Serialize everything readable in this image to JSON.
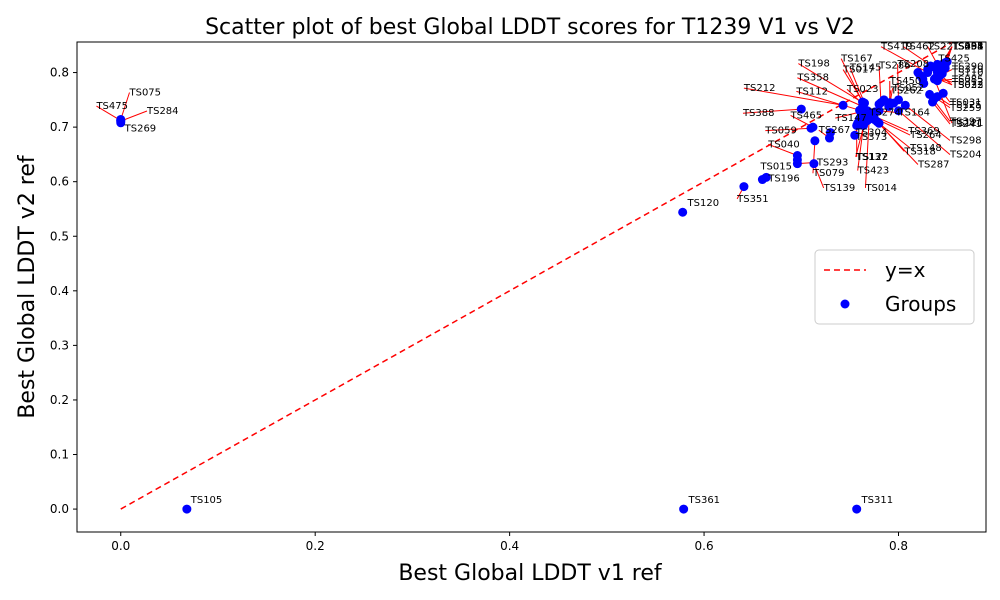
{
  "chart_data": {
    "type": "scatter",
    "title": "Scatter plot of best Global LDDT scores for T1239 V1 vs V2",
    "xlabel": "Best Global LDDT v1 ref",
    "ylabel": "Best Global LDDT v2 ref",
    "xlim": [
      -0.045,
      0.89
    ],
    "ylim": [
      -0.042,
      0.856
    ],
    "xticks": [
      "0.0",
      "0.2",
      "0.4",
      "0.6",
      "0.8"
    ],
    "xtick_values": [
      0.0,
      0.2,
      0.4,
      0.6,
      0.8
    ],
    "yticks": [
      "0.0",
      "0.1",
      "0.2",
      "0.3",
      "0.4",
      "0.5",
      "0.6",
      "0.7",
      "0.8"
    ],
    "ytick_values": [
      0.0,
      0.1,
      0.2,
      0.3,
      0.4,
      0.5,
      0.6,
      0.7,
      0.8
    ],
    "grid": false,
    "legend_position": "center-right",
    "legend": [
      {
        "label": "y=x",
        "style": "dashed-line",
        "color": "#ff0000"
      },
      {
        "label": "Groups",
        "style": "marker",
        "color": "#0000ff"
      }
    ],
    "reference_line": {
      "x": [
        0,
        0.89
      ],
      "y": [
        0,
        0.89
      ],
      "color": "#ff0000"
    },
    "marker_color": "#0000ff",
    "connector_color": "#ff0000",
    "points": [
      {
        "label": "TS075",
        "x": 0.0,
        "y": 0.714,
        "lx": 0.009,
        "ly": 0.758
      },
      {
        "label": "TS475",
        "x": 0.0,
        "y": 0.712,
        "lx": -0.025,
        "ly": 0.733
      },
      {
        "label": "TS284",
        "x": 0.0,
        "y": 0.711,
        "lx": 0.027,
        "ly": 0.724
      },
      {
        "label": "TS269",
        "x": 0.0,
        "y": 0.708,
        "lx": 0.004,
        "ly": 0.692
      },
      {
        "label": "TS105",
        "x": 0.068,
        "y": 0.0,
        "lx": 0.072,
        "ly": 0.011
      },
      {
        "label": "TS120",
        "x": 0.578,
        "y": 0.544,
        "lx": 0.583,
        "ly": 0.555
      },
      {
        "label": "TS361",
        "x": 0.579,
        "y": 0.0,
        "lx": 0.584,
        "ly": 0.011
      },
      {
        "label": "TS351",
        "x": 0.641,
        "y": 0.591,
        "lx": 0.634,
        "ly": 0.563
      },
      {
        "label": "TS196",
        "x": 0.66,
        "y": 0.604,
        "lx": 0.666,
        "ly": 0.6
      },
      {
        "label": "TS015",
        "x": 0.664,
        "y": 0.608,
        "lx": 0.658,
        "ly": 0.622
      },
      {
        "label": "TS040",
        "x": 0.696,
        "y": 0.648,
        "lx": 0.666,
        "ly": 0.663
      },
      {
        "label": "TS293",
        "x": 0.696,
        "y": 0.633,
        "lx": 0.716,
        "ly": 0.63
      },
      {
        "label": "TS059",
        "x": 0.71,
        "y": 0.698,
        "lx": 0.663,
        "ly": 0.688
      },
      {
        "label": "TS079",
        "x": 0.714,
        "y": 0.675,
        "lx": 0.712,
        "ly": 0.61
      },
      {
        "label": "TS139",
        "x": 0.713,
        "y": 0.633,
        "lx": 0.723,
        "ly": 0.583
      },
      {
        "label": "TS388",
        "x": 0.7,
        "y": 0.733,
        "lx": 0.64,
        "ly": 0.72
      },
      {
        "label": "TS465",
        "x": 0.712,
        "y": 0.7,
        "lx": 0.689,
        "ly": 0.716
      },
      {
        "label": "TS267",
        "x": 0.729,
        "y": 0.68,
        "lx": 0.718,
        "ly": 0.689
      },
      {
        "label": "TS212",
        "x": 0.743,
        "y": 0.74,
        "lx": 0.641,
        "ly": 0.766
      },
      {
        "label": "TS112",
        "x": 0.76,
        "y": 0.731,
        "lx": 0.695,
        "ly": 0.76
      },
      {
        "label": "TS358",
        "x": 0.763,
        "y": 0.738,
        "lx": 0.696,
        "ly": 0.785
      },
      {
        "label": "TS198",
        "x": 0.764,
        "y": 0.744,
        "lx": 0.697,
        "ly": 0.811
      },
      {
        "label": "TS023",
        "x": 0.764,
        "y": 0.741,
        "lx": 0.747,
        "ly": 0.764
      },
      {
        "label": "TS167",
        "x": 0.763,
        "y": 0.746,
        "lx": 0.741,
        "ly": 0.82
      },
      {
        "label": "TS017",
        "x": 0.764,
        "y": 0.745,
        "lx": 0.743,
        "ly": 0.8
      },
      {
        "label": "TS145",
        "x": 0.765,
        "y": 0.744,
        "lx": 0.75,
        "ly": 0.804
      },
      {
        "label": "TS014",
        "x": 0.77,
        "y": 0.72,
        "lx": 0.766,
        "ly": 0.583
      },
      {
        "label": "TS423",
        "x": 0.764,
        "y": 0.703,
        "lx": 0.758,
        "ly": 0.615
      },
      {
        "label": "TS137",
        "x": 0.765,
        "y": 0.708,
        "lx": 0.756,
        "ly": 0.64
      },
      {
        "label": "TS122",
        "x": 0.757,
        "y": 0.703,
        "lx": 0.757,
        "ly": 0.64
      },
      {
        "label": "TS373",
        "x": 0.758,
        "y": 0.707,
        "lx": 0.756,
        "ly": 0.676
      },
      {
        "label": "TS304",
        "x": 0.761,
        "y": 0.718,
        "lx": 0.756,
        "ly": 0.685
      },
      {
        "label": "TS147",
        "x": 0.761,
        "y": 0.728,
        "lx": 0.735,
        "ly": 0.711
      },
      {
        "label": "TS287",
        "x": 0.778,
        "y": 0.71,
        "lx": 0.82,
        "ly": 0.626
      },
      {
        "label": "TS318",
        "x": 0.78,
        "y": 0.707,
        "lx": 0.806,
        "ly": 0.65
      },
      {
        "label": "TS148",
        "x": 0.775,
        "y": 0.714,
        "lx": 0.812,
        "ly": 0.656
      },
      {
        "label": "TS264",
        "x": 0.775,
        "y": 0.717,
        "lx": 0.812,
        "ly": 0.68
      },
      {
        "label": "TS369",
        "x": 0.774,
        "y": 0.721,
        "lx": 0.81,
        "ly": 0.687
      },
      {
        "label": "TS164",
        "x": 0.78,
        "y": 0.73,
        "lx": 0.8,
        "ly": 0.721
      },
      {
        "label": "TS274",
        "x": 0.765,
        "y": 0.73,
        "lx": 0.77,
        "ly": 0.721
      },
      {
        "label": "TS204",
        "x": 0.8,
        "y": 0.73,
        "lx": 0.853,
        "ly": 0.644
      },
      {
        "label": "TS298",
        "x": 0.807,
        "y": 0.74,
        "lx": 0.853,
        "ly": 0.67
      },
      {
        "label": "TS262",
        "x": 0.79,
        "y": 0.738,
        "lx": 0.792,
        "ly": 0.762
      },
      {
        "label": "TS052",
        "x": 0.791,
        "y": 0.742,
        "lx": 0.794,
        "ly": 0.766
      },
      {
        "label": "TS450",
        "x": 0.791,
        "y": 0.745,
        "lx": 0.791,
        "ly": 0.779
      },
      {
        "label": "TS208",
        "x": 0.8,
        "y": 0.75,
        "lx": 0.799,
        "ly": 0.81
      },
      {
        "label": "TS286",
        "x": 0.782,
        "y": 0.745,
        "lx": 0.78,
        "ly": 0.807
      },
      {
        "label": "TS311",
        "x": 0.757,
        "y": 0.0,
        "lx": 0.762,
        "ly": 0.011
      },
      {
        "label": "TS241",
        "x": 0.835,
        "y": 0.746,
        "lx": 0.853,
        "ly": 0.7
      },
      {
        "label": "TS397",
        "x": 0.836,
        "y": 0.75,
        "lx": 0.853,
        "ly": 0.705
      },
      {
        "label": "TS259",
        "x": 0.838,
        "y": 0.754,
        "lx": 0.853,
        "ly": 0.73
      },
      {
        "label": "TS125",
        "x": 0.84,
        "y": 0.756,
        "lx": 0.853,
        "ly": 0.735
      },
      {
        "label": "TS031",
        "x": 0.846,
        "y": 0.762,
        "lx": 0.853,
        "ly": 0.74
      },
      {
        "label": "TS419",
        "x": 0.83,
        "y": 0.8,
        "lx": 0.782,
        "ly": 0.842
      },
      {
        "label": "TS462",
        "x": 0.836,
        "y": 0.81,
        "lx": 0.805,
        "ly": 0.842
      },
      {
        "label": "TS221",
        "x": 0.84,
        "y": 0.815,
        "lx": 0.83,
        "ly": 0.842
      },
      {
        "label": "TS022",
        "x": 0.84,
        "y": 0.8,
        "lx": 0.855,
        "ly": 0.772
      },
      {
        "label": "TS312",
        "x": 0.84,
        "y": 0.79,
        "lx": 0.855,
        "ly": 0.777
      },
      {
        "label": "TS110",
        "x": 0.845,
        "y": 0.798,
        "lx": 0.855,
        "ly": 0.795
      },
      {
        "label": "TS319",
        "x": 0.843,
        "y": 0.795,
        "lx": 0.855,
        "ly": 0.8
      },
      {
        "label": "TS290",
        "x": 0.846,
        "y": 0.81,
        "lx": 0.855,
        "ly": 0.806
      },
      {
        "label": "TS425",
        "x": 0.848,
        "y": 0.814,
        "lx": 0.841,
        "ly": 0.82
      },
      {
        "label": "TS494",
        "x": 0.85,
        "y": 0.82,
        "lx": 0.855,
        "ly": 0.842
      },
      {
        "label": "TS235",
        "x": 0.848,
        "y": 0.818,
        "lx": 0.855,
        "ly": 0.842
      },
      {
        "label": "TS331",
        "x": 0.846,
        "y": 0.816,
        "lx": 0.855,
        "ly": 0.842
      },
      {
        "label": "TS055",
        "x": 0.844,
        "y": 0.812,
        "lx": 0.855,
        "ly": 0.842
      },
      {
        "label": "TS408",
        "x": 0.842,
        "y": 0.808,
        "lx": 0.855,
        "ly": 0.842
      },
      {
        "label": "TS033",
        "x": 0.838,
        "y": 0.79,
        "lx": 0.855,
        "ly": 0.772
      },
      {
        "label": "TS085",
        "x": 0.84,
        "y": 0.785,
        "lx": 0.855,
        "ly": 0.782
      },
      {
        "label": "TS121",
        "x": 0.837,
        "y": 0.788,
        "lx": 0.855,
        "ly": 0.702
      }
    ],
    "extra_points": [
      {
        "x": 0.696,
        "y": 0.64
      },
      {
        "x": 0.73,
        "y": 0.69
      },
      {
        "x": 0.755,
        "y": 0.685
      },
      {
        "x": 0.76,
        "y": 0.715
      },
      {
        "x": 0.768,
        "y": 0.73
      },
      {
        "x": 0.785,
        "y": 0.75
      },
      {
        "x": 0.795,
        "y": 0.744
      },
      {
        "x": 0.82,
        "y": 0.8
      },
      {
        "x": 0.825,
        "y": 0.788
      },
      {
        "x": 0.83,
        "y": 0.806
      },
      {
        "x": 0.833,
        "y": 0.812
      },
      {
        "x": 0.826,
        "y": 0.78
      },
      {
        "x": 0.832,
        "y": 0.76
      },
      {
        "x": 0.848,
        "y": 0.808
      },
      {
        "x": 0.842,
        "y": 0.8
      },
      {
        "x": 0.822,
        "y": 0.795
      },
      {
        "x": 0.78,
        "y": 0.742
      },
      {
        "x": 0.776,
        "y": 0.728
      },
      {
        "x": 0.768,
        "y": 0.712
      },
      {
        "x": 0.772,
        "y": 0.718
      }
    ]
  }
}
